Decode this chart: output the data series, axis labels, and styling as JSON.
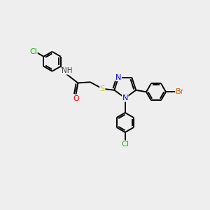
{
  "bg_color": "#eeeeee",
  "bond_color": "#000000",
  "bond_width": 1.4,
  "atom_colors": {
    "N": "#0000ee",
    "O": "#ee0000",
    "S": "#cccc00",
    "Cl": "#00bb00",
    "Br": "#cc6600",
    "H": "#444444"
  },
  "font_size": 8.0,
  "fig_size": [
    3.0,
    3.0
  ],
  "dpi": 100,
  "xlim": [
    -1,
    11
  ],
  "ylim": [
    -1,
    11
  ]
}
